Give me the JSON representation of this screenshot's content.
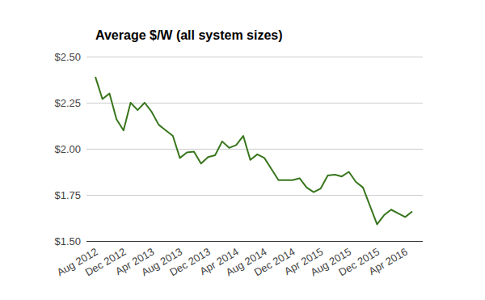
{
  "chart_data": {
    "type": "line",
    "title": "Average $/W (all system sizes)",
    "categories": [
      "Aug 2012",
      null,
      null,
      null,
      "Dec 2012",
      null,
      null,
      null,
      "Apr 2013",
      null,
      null,
      null,
      "Aug 2013",
      null,
      null,
      null,
      "Dec 2013",
      null,
      null,
      null,
      "Apr 2014",
      null,
      null,
      null,
      "Aug 2014",
      null,
      null,
      null,
      "Dec 2014",
      null,
      null,
      null,
      "Apr 2015",
      null,
      null,
      null,
      "Aug 2015",
      null,
      null,
      null,
      "Dec 2015",
      null,
      null,
      null,
      "Apr 2016",
      null
    ],
    "values": [
      2.39,
      2.27,
      2.3,
      2.16,
      2.1,
      2.25,
      2.21,
      2.25,
      2.2,
      2.13,
      2.1,
      2.07,
      1.95,
      1.98,
      1.985,
      1.92,
      1.955,
      1.965,
      2.04,
      2.005,
      2.02,
      2.07,
      1.94,
      1.97,
      1.95,
      1.89,
      1.83,
      1.83,
      1.83,
      1.84,
      1.79,
      1.765,
      1.785,
      1.855,
      1.86,
      1.85,
      1.875,
      1.82,
      1.79,
      1.69,
      1.59,
      1.64,
      1.67,
      1.65,
      1.63,
      1.66
    ],
    "color": "#38761d",
    "ylim": [
      1.5,
      2.5
    ],
    "yticks": [
      {
        "value": 1.5,
        "label": "$1.50"
      },
      {
        "value": 1.75,
        "label": "$1.75"
      },
      {
        "value": 2.0,
        "label": "$2.00"
      },
      {
        "value": 2.25,
        "label": "$2.25"
      },
      {
        "value": 2.5,
        "label": "$2.50"
      }
    ],
    "grid": true
  }
}
